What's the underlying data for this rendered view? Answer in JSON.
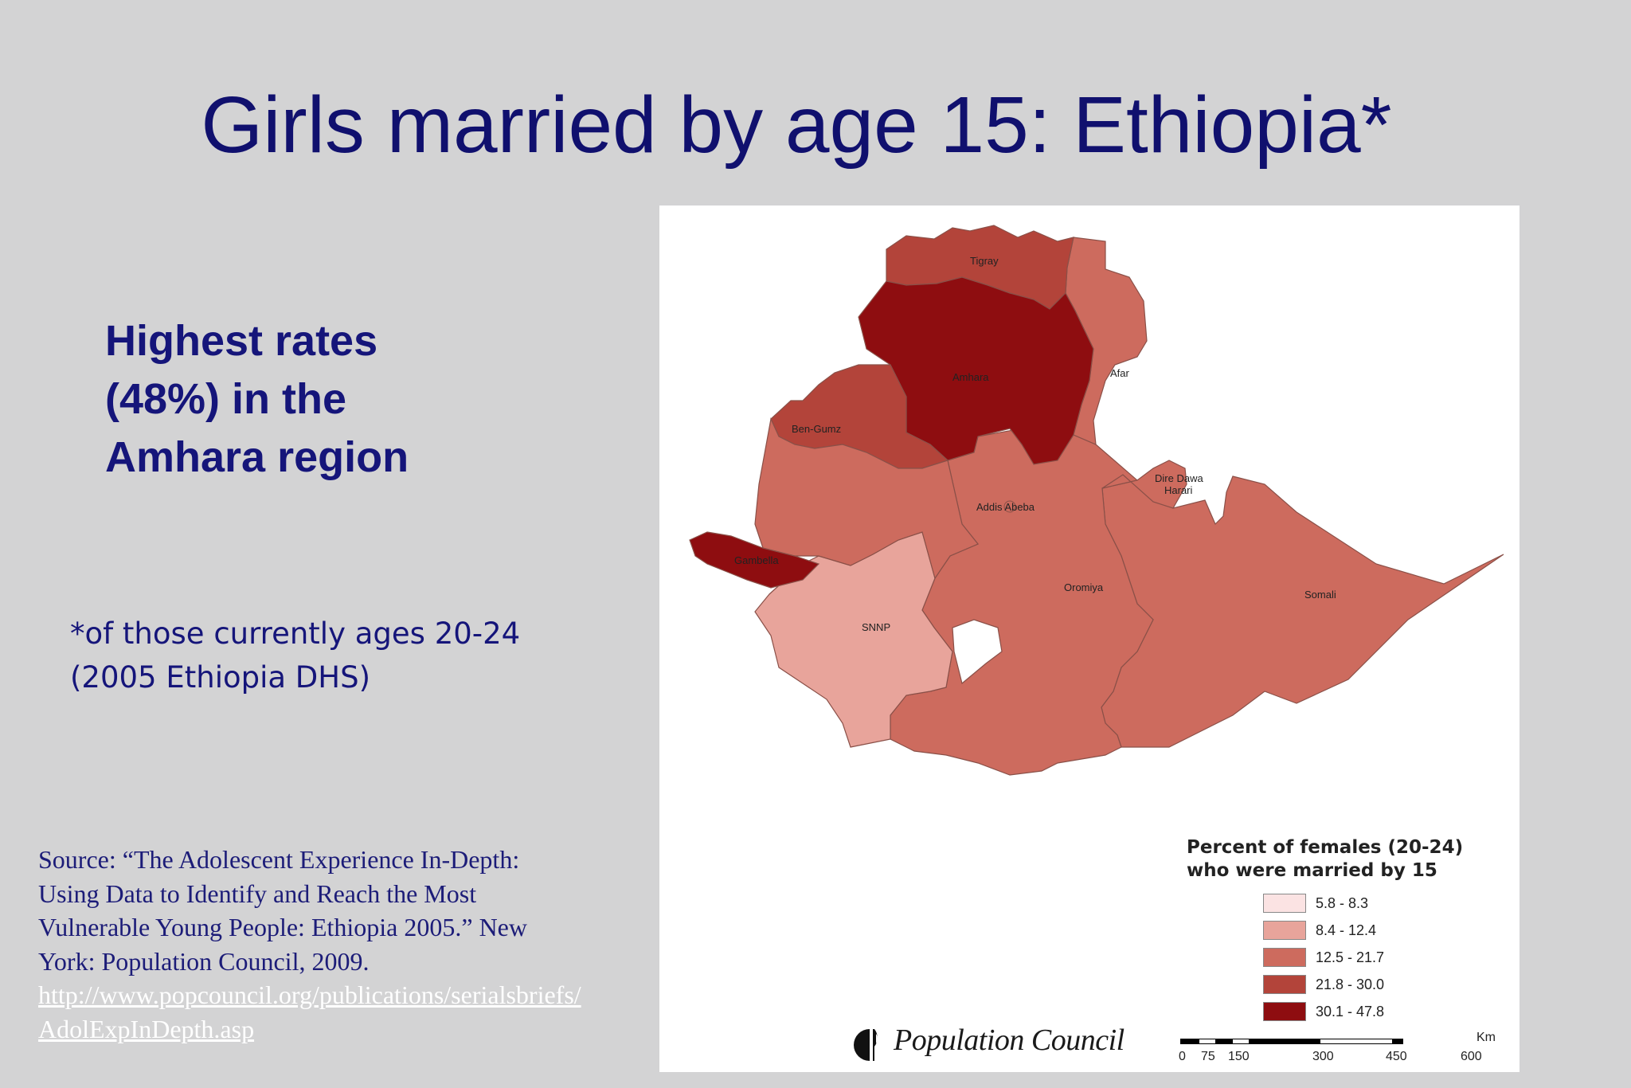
{
  "title": "Girls married by age 15: Ethiopia*",
  "highlight_lines": [
    "Highest rates",
    "(48%) in the",
    "Amhara region"
  ],
  "footnote_lines": [
    "*of those currently ages 20-24",
    "(2005 Ethiopia DHS)"
  ],
  "source": {
    "lines": [
      "Source: “The Adolescent Experience In-Depth:",
      "Using Data to Identify and Reach the Most",
      "Vulnerable Young People: Ethiopia 2005.” New",
      "York: Population Council, 2009."
    ],
    "link_lines": [
      "http://www.popcouncil.org/publications/serialsbriefs/",
      "AdolExpInDepth.asp"
    ]
  },
  "map": {
    "regions": [
      {
        "name": "Tigray",
        "bin": 3
      },
      {
        "name": "Amhara",
        "bin": 4
      },
      {
        "name": "Afar",
        "bin": 2
      },
      {
        "name": "Ben-Gumz",
        "bin": 3
      },
      {
        "name": "Dire Dawa",
        "bin": 2
      },
      {
        "name": "Harari",
        "bin": 2
      },
      {
        "name": "Addis Abeba",
        "bin": 2
      },
      {
        "name": "Gambella",
        "bin": 4
      },
      {
        "name": "Oromiya",
        "bin": 2
      },
      {
        "name": "SNNP",
        "bin": 1
      },
      {
        "name": "Somali",
        "bin": 2
      }
    ],
    "legend": {
      "title_lines": [
        "Percent of females (20-24)",
        "who were married by 15"
      ],
      "bins": [
        {
          "label": "5.8 - 8.3",
          "color": "#fbe3e3"
        },
        {
          "label": "8.4 - 12.4",
          "color": "#e8a49b"
        },
        {
          "label": "12.5 - 21.7",
          "color": "#cd6b5e"
        },
        {
          "label": "21.8 - 30.0",
          "color": "#b3443a"
        },
        {
          "label": "30.1 - 47.8",
          "color": "#8e0d10"
        }
      ]
    },
    "scale_bar": {
      "unit": "Km",
      "ticks": [
        "0",
        "75",
        "150",
        "300",
        "450",
        "600"
      ]
    },
    "logo_text": "Population Council"
  },
  "colors": {
    "background": "#d3d3d4",
    "title": "#10106e",
    "link": "#ffffff"
  }
}
